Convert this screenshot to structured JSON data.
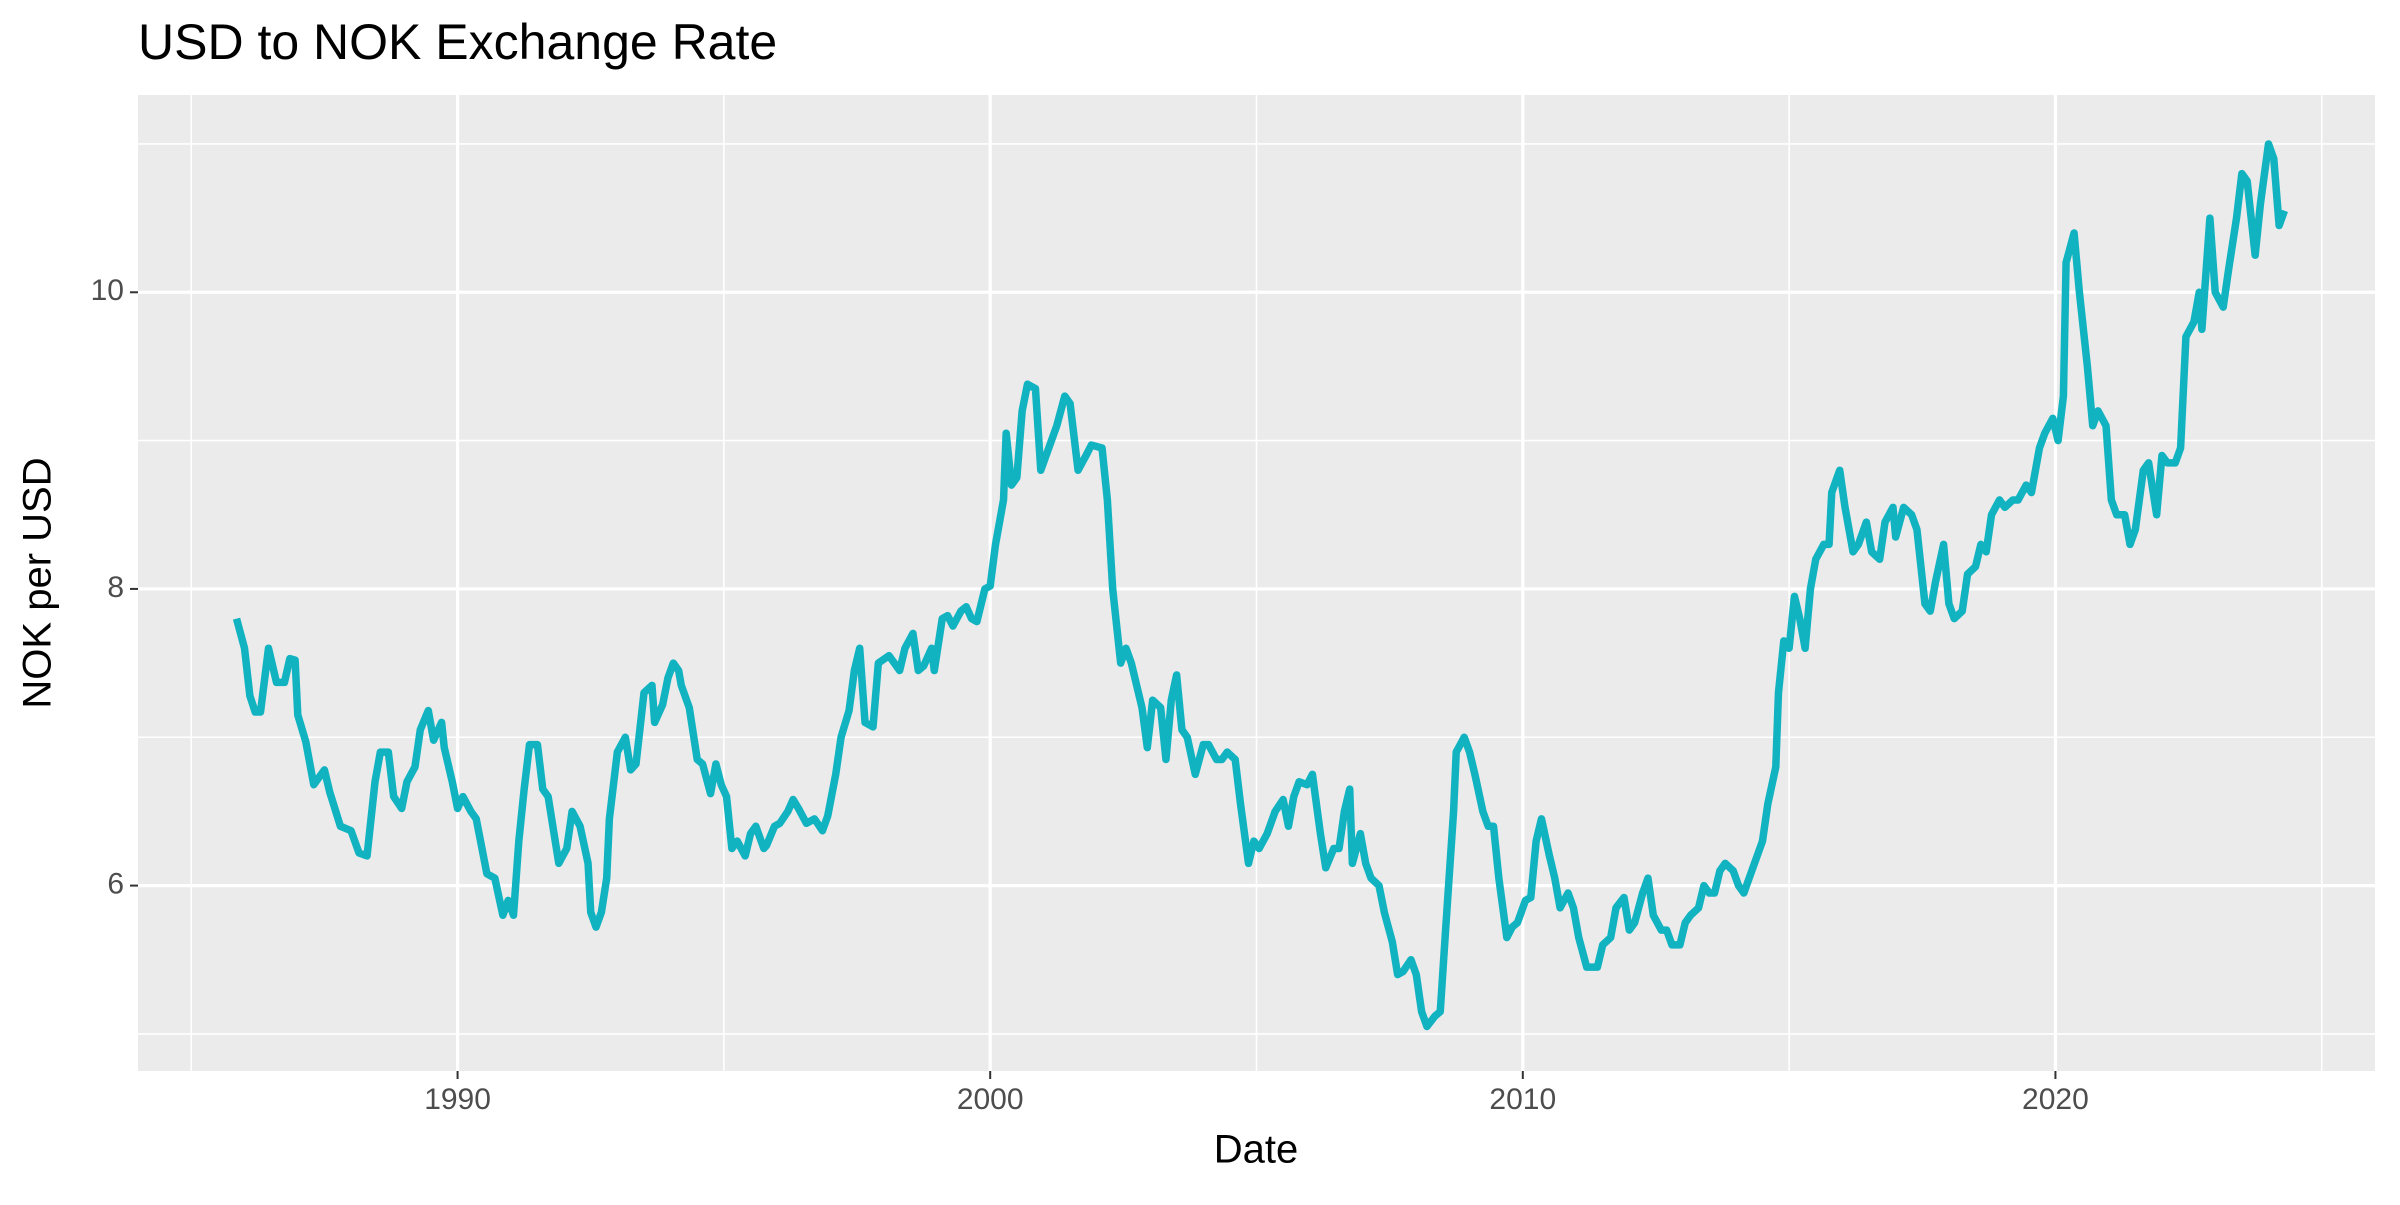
{
  "chart_data": {
    "type": "line",
    "title": "USD to NOK Exchange Rate",
    "x_label": "Date",
    "y_label": "NOK per USD",
    "color": "#12b3c1",
    "grid": true,
    "xlim": [
      1984,
      2026
    ],
    "xticks": [
      1990,
      2000,
      2010,
      2020
    ],
    "ylim": [
      4.75,
      11.33
    ],
    "yticks": [
      6,
      8,
      10
    ],
    "x": [
      1985.85,
      1986.0,
      1986.1,
      1986.2,
      1986.3,
      1986.45,
      1986.6,
      1986.75,
      1986.85,
      1986.95,
      1987.0,
      1987.15,
      1987.3,
      1987.5,
      1987.6,
      1987.8,
      1988.0,
      1988.15,
      1988.3,
      1988.45,
      1988.55,
      1988.7,
      1988.8,
      1988.95,
      1989.05,
      1989.2,
      1989.3,
      1989.45,
      1989.55,
      1989.7,
      1989.75,
      1989.9,
      1990.0,
      1990.1,
      1990.25,
      1990.35,
      1990.55,
      1990.7,
      1990.85,
      1990.95,
      1991.05,
      1991.15,
      1991.25,
      1991.35,
      1991.5,
      1991.6,
      1991.7,
      1991.9,
      1992.05,
      1992.15,
      1992.3,
      1992.45,
      1992.5,
      1992.6,
      1992.7,
      1992.8,
      1992.85,
      1993.0,
      1993.15,
      1993.25,
      1993.35,
      1993.5,
      1993.65,
      1993.7,
      1993.85,
      1993.95,
      1994.05,
      1994.15,
      1994.2,
      1994.35,
      1994.5,
      1994.6,
      1994.75,
      1994.85,
      1994.95,
      1995.05,
      1995.15,
      1995.25,
      1995.4,
      1995.5,
      1995.6,
      1995.75,
      1995.8,
      1995.95,
      1996.05,
      1996.2,
      1996.3,
      1996.4,
      1996.55,
      1996.7,
      1996.85,
      1996.95,
      1997.1,
      1997.2,
      1997.35,
      1997.45,
      1997.55,
      1997.65,
      1997.8,
      1997.9,
      1998.1,
      1998.2,
      1998.3,
      1998.4,
      1998.55,
      1998.65,
      1998.75,
      1998.9,
      1998.95,
      1999.1,
      1999.2,
      1999.3,
      1999.45,
      1999.55,
      1999.65,
      1999.75,
      1999.9,
      2000.0,
      2000.1,
      2000.25,
      2000.3,
      2000.4,
      2000.5,
      2000.6,
      2000.7,
      2000.85,
      2000.95,
      2001.1,
      2001.25,
      2001.4,
      2001.5,
      2001.65,
      2001.8,
      2001.9,
      2002.1,
      2002.2,
      2002.3,
      2002.45,
      2002.55,
      2002.65,
      2002.85,
      2002.95,
      2003.05,
      2003.2,
      2003.3,
      2003.4,
      2003.5,
      2003.6,
      2003.7,
      2003.85,
      2004.0,
      2004.1,
      2004.25,
      2004.35,
      2004.45,
      2004.6,
      2004.7,
      2004.85,
      2004.95,
      2005.05,
      2005.2,
      2005.35,
      2005.5,
      2005.6,
      2005.7,
      2005.8,
      2005.95,
      2006.05,
      2006.2,
      2006.3,
      2006.45,
      2006.55,
      2006.65,
      2006.75,
      2006.8,
      2006.95,
      2007.05,
      2007.15,
      2007.3,
      2007.4,
      2007.55,
      2007.65,
      2007.75,
      2007.9,
      2008.0,
      2008.1,
      2008.2,
      2008.35,
      2008.45,
      2008.55,
      2008.7,
      2008.75,
      2008.9,
      2009.0,
      2009.1,
      2009.25,
      2009.35,
      2009.45,
      2009.55,
      2009.7,
      2009.8,
      2009.9,
      2010.05,
      2010.15,
      2010.25,
      2010.35,
      2010.5,
      2010.6,
      2010.7,
      2010.85,
      2010.95,
      2011.05,
      2011.2,
      2011.3,
      2011.4,
      2011.5,
      2011.65,
      2011.75,
      2011.9,
      2012.0,
      2012.1,
      2012.25,
      2012.35,
      2012.45,
      2012.6,
      2012.7,
      2012.8,
      2012.95,
      2013.05,
      2013.15,
      2013.3,
      2013.4,
      2013.5,
      2013.6,
      2013.7,
      2013.8,
      2013.95,
      2014.05,
      2014.15,
      2014.25,
      2014.4,
      2014.5,
      2014.6,
      2014.75,
      2014.8,
      2014.9,
      2015.0,
      2015.1,
      2015.2,
      2015.3,
      2015.4,
      2015.5,
      2015.65,
      2015.75,
      2015.8,
      2015.95,
      2016.05,
      2016.2,
      2016.3,
      2016.45,
      2016.55,
      2016.7,
      2016.8,
      2016.95,
      2017.0,
      2017.15,
      2017.3,
      2017.4,
      2017.55,
      2017.65,
      2017.75,
      2017.9,
      2018.0,
      2018.1,
      2018.25,
      2018.35,
      2018.5,
      2018.6,
      2018.7,
      2018.8,
      2018.95,
      2019.05,
      2019.2,
      2019.3,
      2019.45,
      2019.55,
      2019.7,
      2019.8,
      2019.95,
      2020.05,
      2020.15,
      2020.2,
      2020.35,
      2020.45,
      2020.6,
      2020.7,
      2020.8,
      2020.95,
      2021.05,
      2021.15,
      2021.3,
      2021.4,
      2021.5,
      2021.65,
      2021.75,
      2021.9,
      2022.0,
      2022.1,
      2022.25,
      2022.35,
      2022.45,
      2022.6,
      2022.7,
      2022.75,
      2022.9,
      2023.0,
      2023.15,
      2023.25,
      2023.4,
      2023.5,
      2023.6,
      2023.75,
      2023.85,
      2024.0,
      2024.1,
      2024.2,
      2024.3
    ],
    "values": [
      7.8,
      7.6,
      7.28,
      7.17,
      7.17,
      7.6,
      7.37,
      7.37,
      7.53,
      7.52,
      7.15,
      6.97,
      6.68,
      6.78,
      6.63,
      6.4,
      6.37,
      6.22,
      6.2,
      6.7,
      6.9,
      6.9,
      6.6,
      6.52,
      6.7,
      6.8,
      7.05,
      7.18,
      6.98,
      7.1,
      6.93,
      6.7,
      6.52,
      6.6,
      6.5,
      6.45,
      6.08,
      6.05,
      5.8,
      5.9,
      5.8,
      6.3,
      6.65,
      6.95,
      6.95,
      6.65,
      6.6,
      6.15,
      6.25,
      6.5,
      6.4,
      6.15,
      5.82,
      5.72,
      5.82,
      6.05,
      6.45,
      6.9,
      7.0,
      6.78,
      6.82,
      7.3,
      7.35,
      7.1,
      7.22,
      7.4,
      7.5,
      7.45,
      7.35,
      7.2,
      6.85,
      6.82,
      6.62,
      6.82,
      6.68,
      6.6,
      6.25,
      6.3,
      6.2,
      6.35,
      6.4,
      6.25,
      6.27,
      6.4,
      6.42,
      6.5,
      6.58,
      6.52,
      6.42,
      6.45,
      6.37,
      6.47,
      6.75,
      7.0,
      7.18,
      7.45,
      7.6,
      7.1,
      7.07,
      7.5,
      7.55,
      7.5,
      7.45,
      7.6,
      7.7,
      7.45,
      7.48,
      7.6,
      7.45,
      7.8,
      7.82,
      7.75,
      7.85,
      7.88,
      7.8,
      7.78,
      8.0,
      8.02,
      8.3,
      8.6,
      9.05,
      8.7,
      8.75,
      9.2,
      9.38,
      9.35,
      8.8,
      8.95,
      9.1,
      9.3,
      9.25,
      8.8,
      8.9,
      8.97,
      8.95,
      8.6,
      8.0,
      7.5,
      7.6,
      7.5,
      7.2,
      6.93,
      7.25,
      7.2,
      6.85,
      7.25,
      7.42,
      7.05,
      7.0,
      6.75,
      6.95,
      6.95,
      6.85,
      6.85,
      6.9,
      6.85,
      6.55,
      6.15,
      6.3,
      6.25,
      6.35,
      6.5,
      6.58,
      6.4,
      6.6,
      6.7,
      6.68,
      6.75,
      6.35,
      6.12,
      6.25,
      6.25,
      6.5,
      6.65,
      6.15,
      6.35,
      6.15,
      6.05,
      6.0,
      5.82,
      5.62,
      5.4,
      5.42,
      5.5,
      5.4,
      5.15,
      5.05,
      5.12,
      5.15,
      5.7,
      6.5,
      6.9,
      7.0,
      6.9,
      6.75,
      6.5,
      6.4,
      6.4,
      6.05,
      5.65,
      5.72,
      5.75,
      5.9,
      5.92,
      6.3,
      6.45,
      6.2,
      6.05,
      5.85,
      5.95,
      5.85,
      5.65,
      5.45,
      5.45,
      5.45,
      5.6,
      5.65,
      5.85,
      5.92,
      5.7,
      5.75,
      5.95,
      6.05,
      5.8,
      5.7,
      5.7,
      5.6,
      5.6,
      5.75,
      5.8,
      5.85,
      6.0,
      5.95,
      5.95,
      6.1,
      6.15,
      6.1,
      6.0,
      5.95,
      6.05,
      6.2,
      6.3,
      6.55,
      6.8,
      7.3,
      7.65,
      7.6,
      7.95,
      7.8,
      7.6,
      8.0,
      8.2,
      8.3,
      8.3,
      8.65,
      8.8,
      8.55,
      8.25,
      8.3,
      8.45,
      8.25,
      8.2,
      8.45,
      8.55,
      8.35,
      8.55,
      8.5,
      8.4,
      7.9,
      7.85,
      8.05,
      8.3,
      7.9,
      7.8,
      7.85,
      8.1,
      8.15,
      8.3,
      8.25,
      8.5,
      8.6,
      8.55,
      8.6,
      8.6,
      8.7,
      8.65,
      8.95,
      9.05,
      9.15,
      9.0,
      9.3,
      10.2,
      10.4,
      10.0,
      9.5,
      9.1,
      9.2,
      9.1,
      8.6,
      8.5,
      8.5,
      8.3,
      8.4,
      8.8,
      8.85,
      8.5,
      8.9,
      8.85,
      8.85,
      8.95,
      9.7,
      9.8,
      10.0,
      9.75,
      10.5,
      10.0,
      9.9,
      10.15,
      10.5,
      10.8,
      10.75,
      10.25,
      10.6,
      11.0,
      10.9,
      10.45,
      10.55
    ]
  }
}
